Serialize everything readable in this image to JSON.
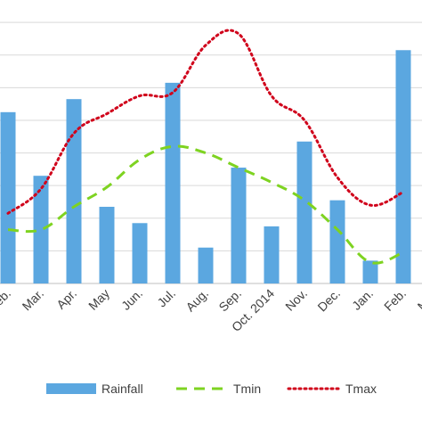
{
  "chart_data": {
    "type": "bar",
    "categories": [
      "Feb.",
      "Mar.",
      "Apr.",
      "May",
      "Jun.",
      "Jul.",
      "Aug.",
      "Sep.",
      "Oct. 2014",
      "Nov.",
      "Dec.",
      "Jan.",
      "Feb.",
      "Mar."
    ],
    "series": [
      {
        "name": "Rainfall",
        "type": "bar",
        "color": "#5BA7E0",
        "values": [
          105,
          66,
          113,
          47,
          37,
          123,
          22,
          71,
          35,
          87,
          51,
          14,
          143,
          0
        ]
      },
      {
        "name": "Tmin",
        "type": "line",
        "style": "dashed",
        "color": "#7ED321",
        "values": [
          33,
          33,
          47,
          59,
          76,
          84,
          80,
          71,
          62,
          51,
          33,
          13,
          19,
          null
        ]
      },
      {
        "name": "Tmax",
        "type": "line",
        "style": "dotted",
        "color": "#D0021B",
        "values": [
          43,
          58,
          92,
          104,
          115,
          117,
          146,
          153,
          115,
          100,
          65,
          48,
          56,
          null
        ]
      }
    ],
    "ylim": [
      0,
      165
    ],
    "grid": true,
    "legend": "bottom"
  }
}
